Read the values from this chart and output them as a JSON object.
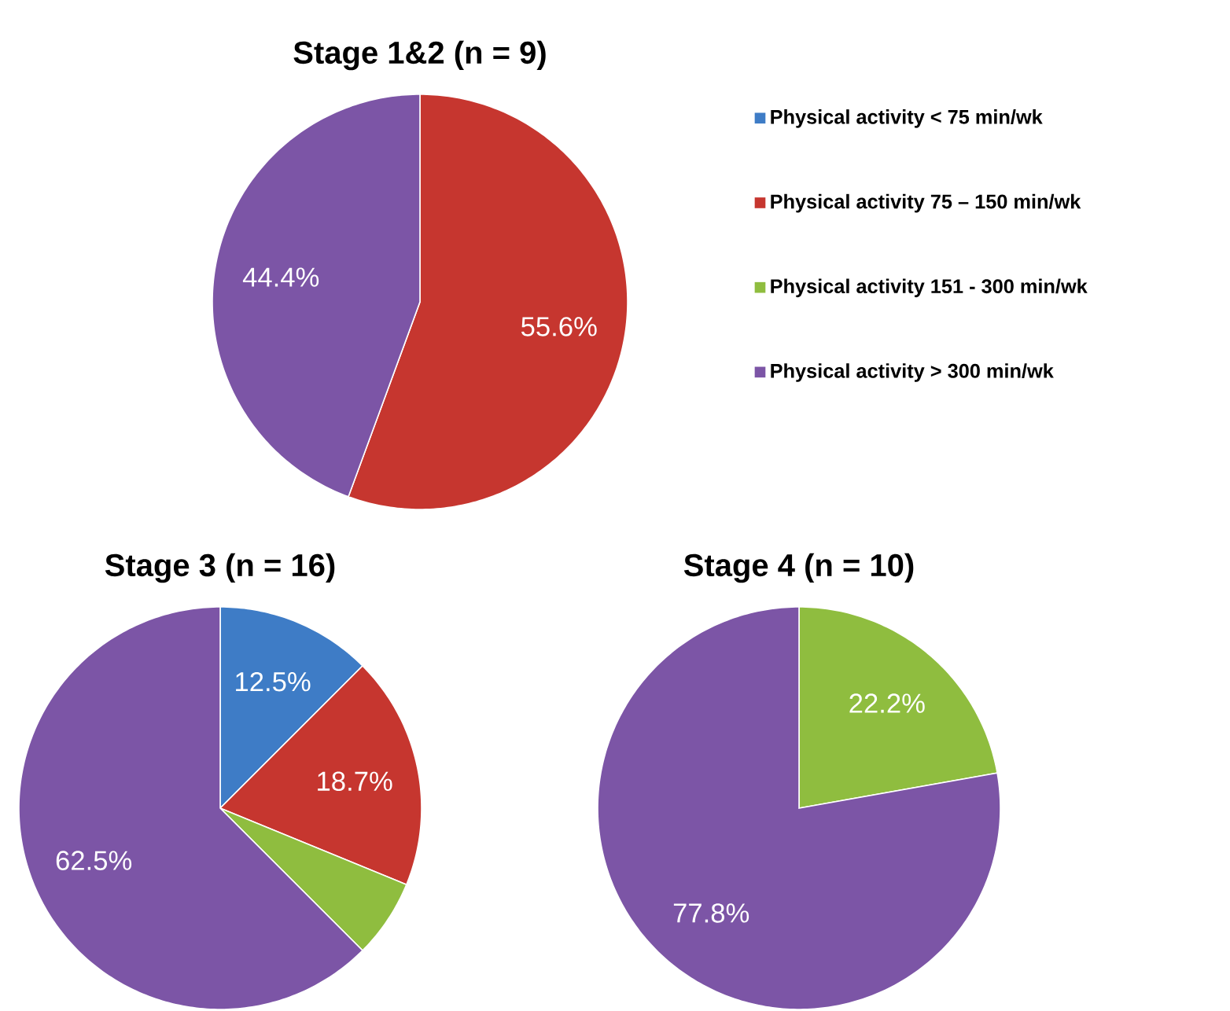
{
  "chart_data": [
    {
      "type": "pie",
      "title": "Stage 1&2 (n = 9)",
      "categories": [
        "Physical activity < 75 min/wk",
        "Physical activity 75 – 150 min/wk",
        "Physical activity 151 - 300 min/wk",
        "Physical activity > 300 min/wk"
      ],
      "values": [
        0,
        55.6,
        0,
        44.4
      ],
      "colors": [
        "#3e7cc6",
        "#c6362f",
        "#8fbd3f",
        "#7c55a6"
      ],
      "value_labels": [
        null,
        "55.6%",
        null,
        "44.4%"
      ],
      "legend": "right"
    },
    {
      "type": "pie",
      "title": "Stage 3 (n = 16)",
      "categories": [
        null,
        null,
        null,
        null
      ],
      "values": [
        12.5,
        18.7,
        6.3,
        62.5
      ],
      "colors": [
        "#3e7cc6",
        "#c6362f",
        "#8fbd3f",
        "#7c55a6"
      ],
      "value_labels": [
        "12.5%",
        "18.7%",
        null,
        "62.5%"
      ]
    },
    {
      "type": "pie",
      "title": "Stage 4 (n = 10)",
      "categories": [
        null,
        null,
        null,
        null
      ],
      "values": [
        0,
        0,
        22.2,
        77.8
      ],
      "colors": [
        "#3e7cc6",
        "#c6362f",
        "#8fbd3f",
        "#7c55a6"
      ],
      "value_labels": [
        null,
        null,
        "22.2%",
        "77.8%"
      ]
    }
  ]
}
